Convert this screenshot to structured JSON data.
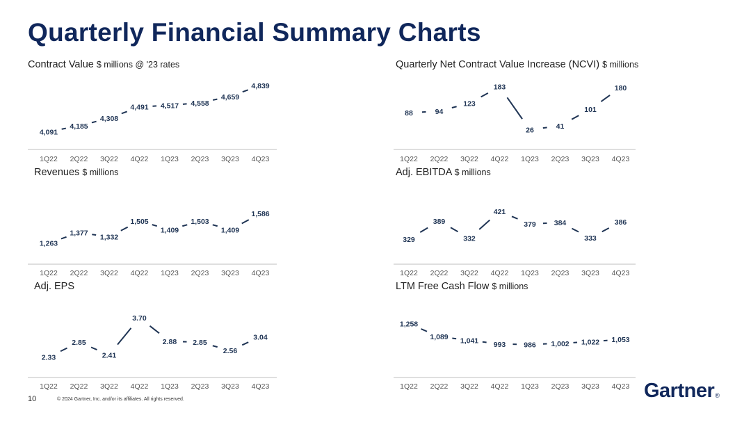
{
  "page": {
    "title": "Quarterly Financial Summary Charts",
    "page_number": "10",
    "copyright": "© 2024 Gartner, Inc. and/or its affiliates. All rights reserved.",
    "logo_text": "Gartner",
    "logo_mark": "®"
  },
  "colors": {
    "title": "#10275b",
    "line": "#1f3454",
    "axis": "#bfbfbf",
    "label": "#1f3454",
    "tick": "#555555"
  },
  "chart_data": [
    {
      "id": "contract-value",
      "type": "line",
      "title": "Contract Value",
      "unit": "$ millions @ '23 rates",
      "categories": [
        "1Q22",
        "2Q22",
        "3Q22",
        "4Q22",
        "1Q23",
        "2Q23",
        "3Q23",
        "4Q23"
      ],
      "values": [
        4091,
        4185,
        4308,
        4491,
        4517,
        4558,
        4659,
        4839
      ],
      "labels": [
        "4,091",
        "4,185",
        "4,308",
        "4,491",
        "4,517",
        "4,558",
        "4,659",
        "4,839"
      ],
      "ylim": [
        4050,
        4870
      ]
    },
    {
      "id": "ncvi",
      "type": "line",
      "title": "Quarterly Net Contract Value Increase (NCVI)",
      "unit": "$ millions",
      "categories": [
        "1Q22",
        "2Q22",
        "3Q22",
        "4Q22",
        "1Q23",
        "2Q23",
        "3Q23",
        "4Q23"
      ],
      "values": [
        88,
        94,
        123,
        183,
        26,
        41,
        101,
        180
      ],
      "labels": [
        "88",
        "94",
        "123",
        "183",
        "26",
        "41",
        "101",
        "180"
      ],
      "ylim": [
        10,
        195
      ]
    },
    {
      "id": "revenues",
      "type": "line",
      "title": "Revenues",
      "unit": "$ millions",
      "categories": [
        "1Q22",
        "2Q22",
        "3Q22",
        "4Q22",
        "1Q23",
        "2Q23",
        "3Q23",
        "4Q23"
      ],
      "values": [
        1263,
        1377,
        1332,
        1505,
        1409,
        1503,
        1409,
        1586
      ],
      "labels": [
        "1,263",
        "1,377",
        "1,332",
        "1,505",
        "1,409",
        "1,503",
        "1,409",
        "1,586"
      ],
      "ylim": [
        1230,
        1610
      ]
    },
    {
      "id": "adj-ebitda",
      "type": "line",
      "title": "Adj. EBITDA",
      "unit": "$ millions",
      "categories": [
        "1Q22",
        "2Q22",
        "3Q22",
        "4Q22",
        "1Q23",
        "2Q23",
        "3Q23",
        "4Q23"
      ],
      "values": [
        329,
        389,
        332,
        421,
        379,
        384,
        333,
        386
      ],
      "labels": [
        "329",
        "389",
        "332",
        "421",
        "379",
        "384",
        "333",
        "386"
      ],
      "ylim": [
        315,
        430
      ]
    },
    {
      "id": "adj-eps",
      "type": "line",
      "title": "Adj. EPS",
      "unit": "",
      "categories": [
        "1Q22",
        "2Q22",
        "3Q22",
        "4Q22",
        "1Q23",
        "2Q23",
        "3Q23",
        "4Q23"
      ],
      "values": [
        2.33,
        2.85,
        2.41,
        3.7,
        2.88,
        2.85,
        2.56,
        3.04
      ],
      "labels": [
        "2.33",
        "2.85",
        "2.41",
        "3.70",
        "2.88",
        "2.85",
        "2.56",
        "3.04"
      ],
      "ylim": [
        2.2,
        3.8
      ]
    },
    {
      "id": "ltm-fcf",
      "type": "line",
      "title": "LTM Free Cash Flow",
      "unit": "$ millions",
      "categories": [
        "1Q22",
        "2Q22",
        "3Q22",
        "4Q22",
        "1Q23",
        "2Q23",
        "3Q23",
        "4Q23"
      ],
      "values": [
        1258,
        1089,
        1041,
        993,
        986,
        1002,
        1022,
        1053
      ],
      "labels": [
        "1,258",
        "1,089",
        "1,041",
        "993",
        "986",
        "1,002",
        "1,022",
        "1,053"
      ],
      "ylim": [
        900,
        1300
      ]
    }
  ]
}
